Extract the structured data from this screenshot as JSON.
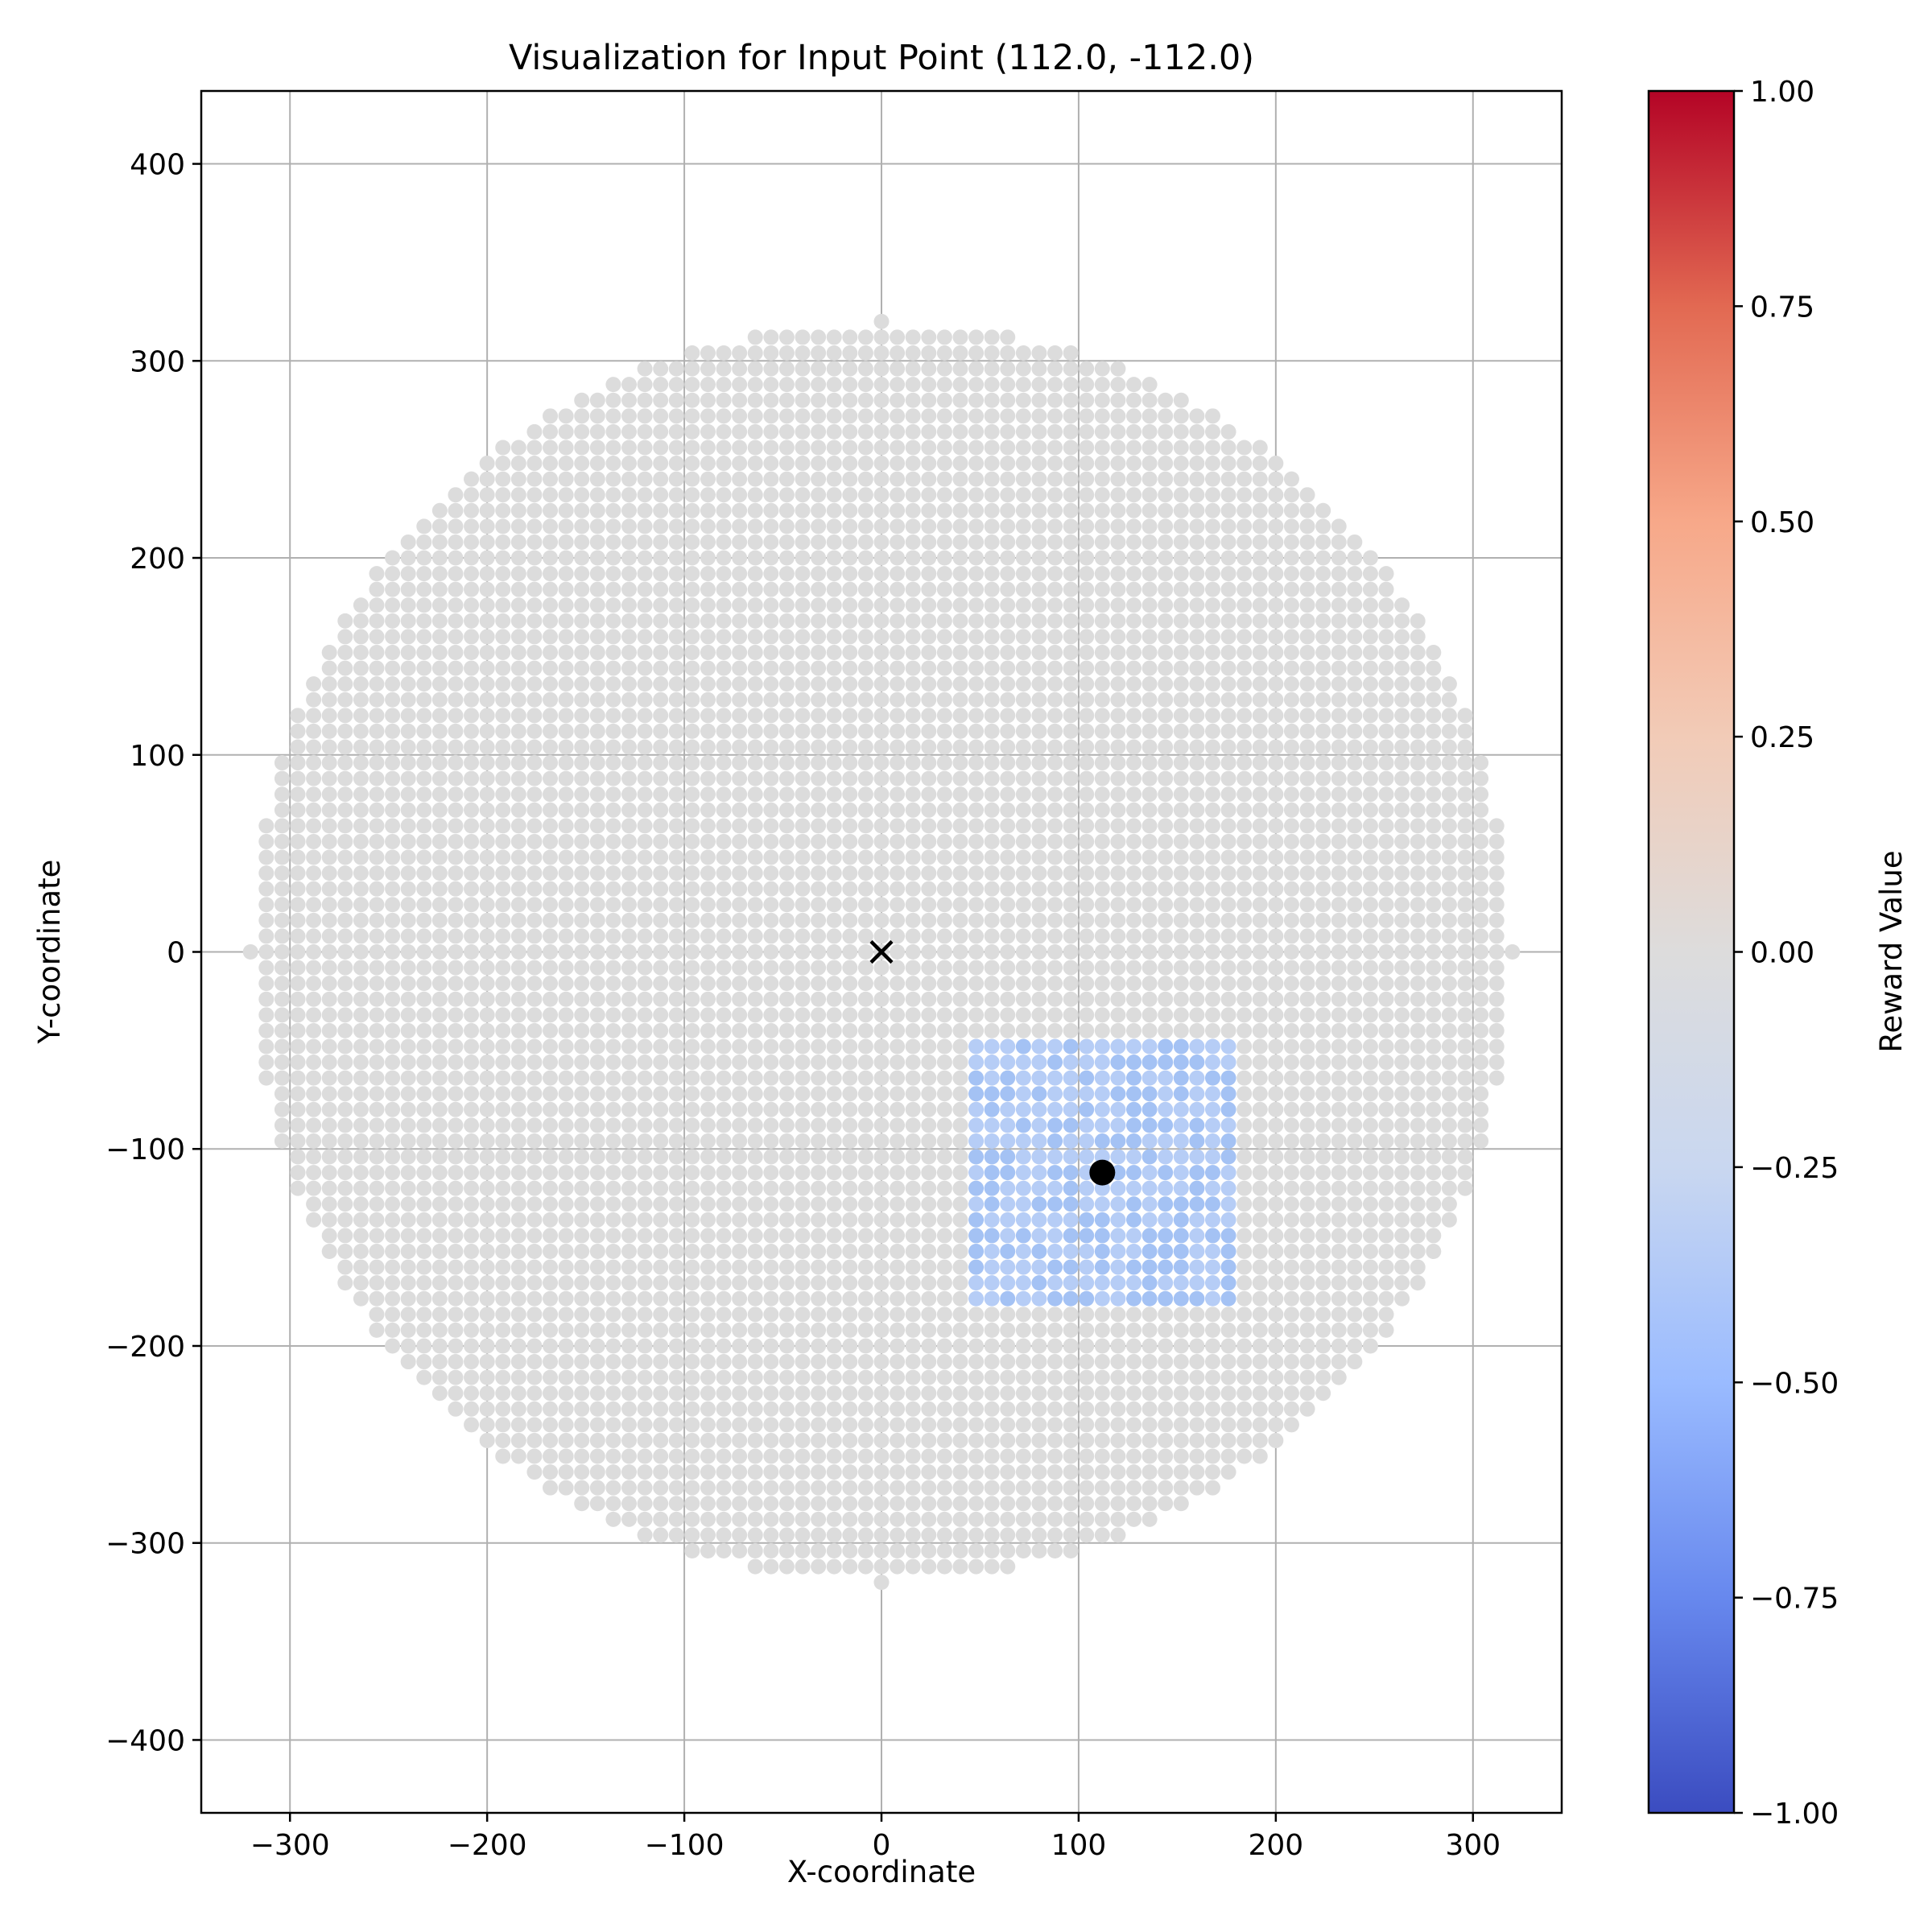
{
  "chart_data": {
    "type": "scatter",
    "title": "Visualization for Input Point (112.0, -112.0)",
    "xlabel": "X-coordinate",
    "ylabel": "Y-coordinate",
    "xlim": [
      -345,
      345
    ],
    "ylim": [
      -437,
      437
    ],
    "xticks": [
      -300,
      -200,
      -100,
      0,
      100,
      200,
      300
    ],
    "yticks": [
      -400,
      -300,
      -200,
      -100,
      0,
      100,
      200,
      300,
      400
    ],
    "xtick_labels": [
      "−300",
      "−200",
      "−100",
      "0",
      "100",
      "200",
      "300"
    ],
    "ytick_labels": [
      "−400",
      "−300",
      "−200",
      "−100",
      "0",
      "100",
      "200",
      "300",
      "400"
    ],
    "grid": true,
    "grid_points": {
      "shape": "disc",
      "center": [
        0,
        0
      ],
      "radius": 320,
      "step": 8,
      "value": 0.0,
      "color": "#dcdcdc"
    },
    "highlight_region": {
      "x_range": [
        48,
        176
      ],
      "y_range": [
        -176,
        -48
      ],
      "step": 8,
      "value_range": [
        -0.4,
        -0.2
      ],
      "colors": [
        "#b6cdf6",
        "#a4c2f4"
      ]
    },
    "center_marker": {
      "x": 0,
      "y": 0,
      "marker": "x",
      "color": "#000000"
    },
    "input_point": {
      "x": 112.0,
      "y": -112.0,
      "marker": "o",
      "color": "#000000"
    },
    "colorbar": {
      "label": "Reward Value",
      "colormap": "coolwarm",
      "vmin": -1.0,
      "vmax": 1.0,
      "ticks": [
        1.0,
        0.75,
        0.5,
        0.25,
        0.0,
        -0.25,
        -0.5,
        -0.75,
        -1.0
      ],
      "tick_labels": [
        "1.00",
        "0.75",
        "0.50",
        "0.25",
        "0.00",
        "−0.25",
        "−0.50",
        "−0.75",
        "−1.00"
      ],
      "stops": [
        "#3b4cc0",
        "#6788ee",
        "#9abbff",
        "#c9d7f0",
        "#dddcdc",
        "#f2cbb7",
        "#f7a889",
        "#e26952",
        "#b40426"
      ]
    }
  }
}
